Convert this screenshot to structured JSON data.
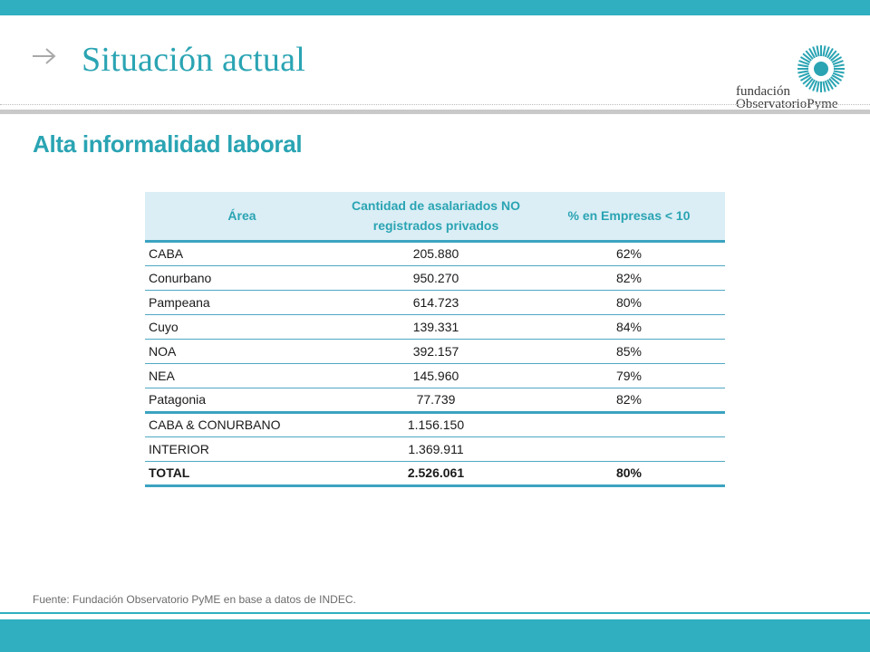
{
  "slide": {
    "title": "Situación actual",
    "subtitle": "Alta informalidad laboral",
    "source": "Fuente: Fundación Observatorio PyME en base a datos de INDEC."
  },
  "logo": {
    "line1": "fundación",
    "line2": "ObservatorioPyme"
  },
  "colors": {
    "accent": "#2aa4b3",
    "header_fill": "#dbeef5",
    "rule": "#3ba3c0"
  },
  "table": {
    "headers": [
      "Área",
      "Cantidad de asalariados NO registrados privados",
      "% en Empresas < 10"
    ],
    "rows": [
      {
        "area": "CABA",
        "cantidad": "205.880",
        "pct": "62%"
      },
      {
        "area": "Conurbano",
        "cantidad": "950.270",
        "pct": "82%"
      },
      {
        "area": "Pampeana",
        "cantidad": "614.723",
        "pct": "80%"
      },
      {
        "area": "Cuyo",
        "cantidad": "139.331",
        "pct": "84%"
      },
      {
        "area": "NOA",
        "cantidad": "392.157",
        "pct": "85%"
      },
      {
        "area": "NEA",
        "cantidad": "145.960",
        "pct": "79%"
      },
      {
        "area": "Patagonia",
        "cantidad": "77.739",
        "pct": "82%"
      },
      {
        "area": "CABA & CONURBANO",
        "cantidad": "1.156.150",
        "pct": ""
      },
      {
        "area": "INTERIOR",
        "cantidad": "1.369.911",
        "pct": ""
      },
      {
        "area": "TOTAL",
        "cantidad": "2.526.061",
        "pct": "80%"
      }
    ]
  }
}
